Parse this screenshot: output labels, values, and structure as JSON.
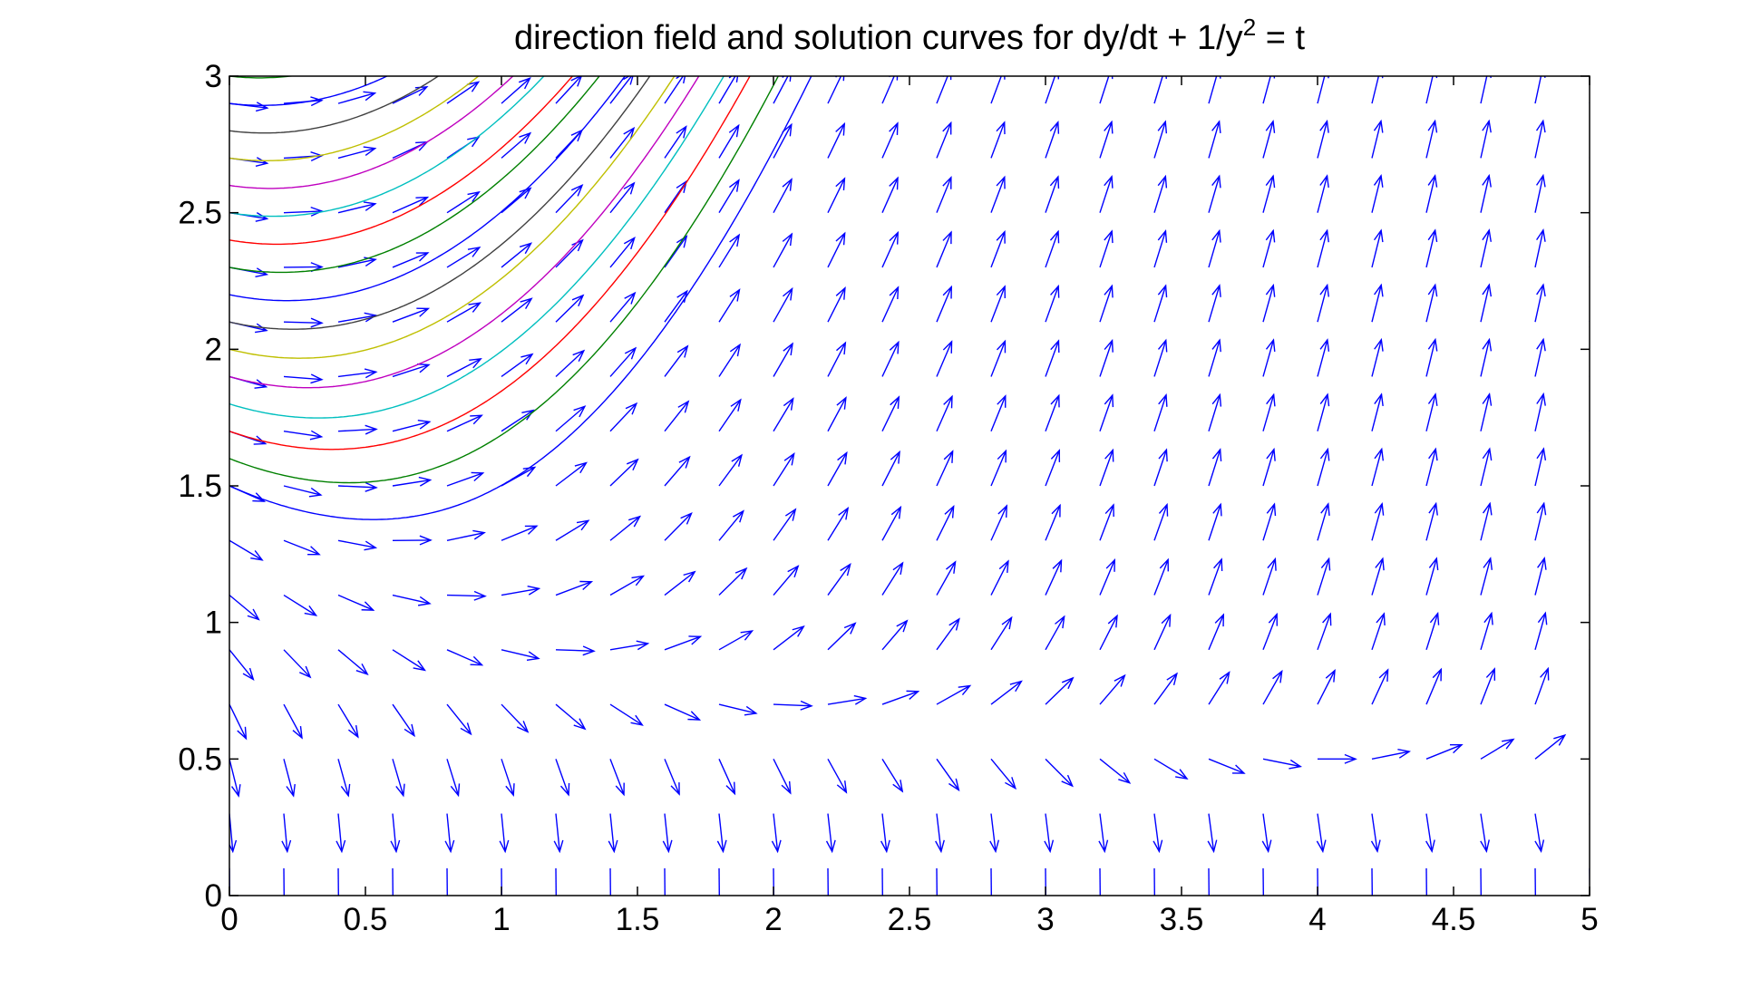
{
  "chart_data": {
    "type": "direction_field",
    "title": {
      "main": "direction field and solution curves for dy/dt + 1/y",
      "superscript": "2",
      "tail": " = t"
    },
    "equation": "dy/dt = t - 1/y^2",
    "xlabel": "",
    "ylabel": "",
    "xlim": [
      0,
      5
    ],
    "ylim": [
      0,
      3
    ],
    "x_ticks": [
      "0",
      "0.5",
      "1",
      "1.5",
      "2",
      "2.5",
      "3",
      "3.5",
      "4",
      "4.5",
      "5"
    ],
    "y_ticks": [
      "0",
      "0.5",
      "1",
      "1.5",
      "2",
      "2.5",
      "3"
    ],
    "grid": false,
    "field": {
      "t_values": [
        0,
        0.2,
        0.4,
        0.6,
        0.8,
        1.0,
        1.2,
        1.4,
        1.6,
        1.8,
        2.0,
        2.2,
        2.4,
        2.6,
        2.8,
        3.0,
        3.2,
        3.4,
        3.6,
        3.8,
        4.0,
        4.2,
        4.4,
        4.6,
        4.8,
        5.0
      ],
      "y_values": [
        0.1,
        0.3,
        0.5,
        0.7,
        0.9,
        1.1,
        1.3,
        1.5,
        1.7,
        1.9,
        2.1,
        2.3,
        2.5,
        2.7,
        2.9
      ],
      "color": "#0000ff"
    },
    "solution_curves": {
      "t_start": 0,
      "t_end": 2.3,
      "initial_values": [
        1.5,
        1.6,
        1.7,
        1.8,
        1.9,
        2.0,
        2.1,
        2.2,
        2.3,
        2.4,
        2.5,
        2.6,
        2.7,
        2.8,
        2.9,
        3.0
      ],
      "colors": [
        "#0000ff",
        "#008000",
        "#ff0000",
        "#00bfbf",
        "#bf00bf",
        "#bfbf00",
        "#404040",
        "#0000ff",
        "#008000",
        "#ff0000",
        "#00bfbf",
        "#bf00bf",
        "#bfbf00",
        "#404040",
        "#0000ff",
        "#008000"
      ]
    }
  }
}
